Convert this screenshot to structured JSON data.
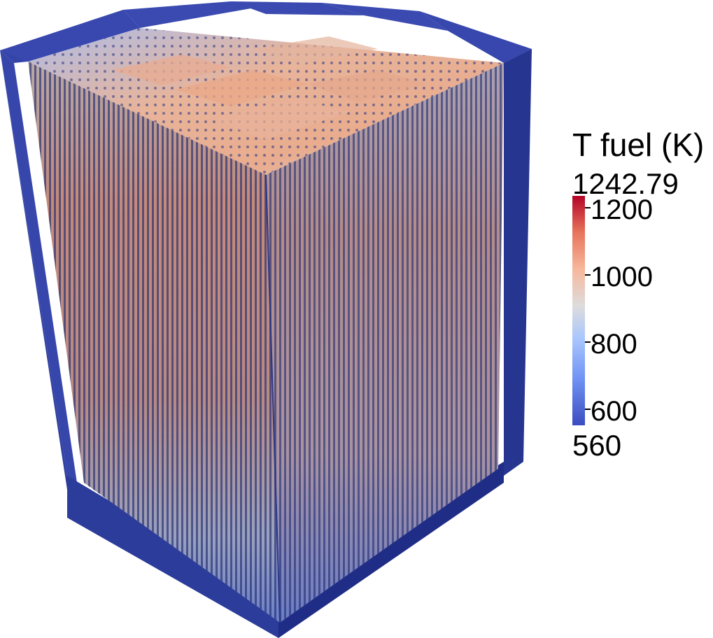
{
  "legend": {
    "title": "T fuel (K)",
    "max_label": "1242.79",
    "min_label": "560",
    "ticks": [
      "1200",
      "1000",
      "800",
      "600"
    ],
    "range": [
      560,
      1242.79
    ]
  },
  "colors": {
    "cold": "#3b4cc0",
    "mid": "#dddcdc",
    "hot": "#b40426",
    "pin_dark": "#1e2a6e",
    "housing": "#3a4aa8"
  }
}
